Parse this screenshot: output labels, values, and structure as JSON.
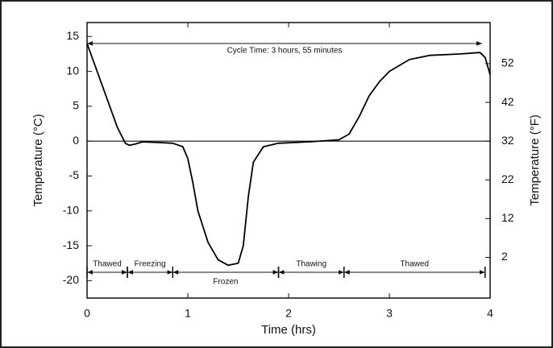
{
  "chart_data": {
    "type": "line",
    "xlabel": "Time (hrs)",
    "ylabel": "Temperature (°C)",
    "y2label": "Temperature (°F)",
    "x": [
      0,
      0.1,
      0.2,
      0.3,
      0.38,
      0.42,
      0.48,
      0.55,
      0.7,
      0.85,
      0.95,
      1.0,
      1.05,
      1.1,
      1.2,
      1.3,
      1.4,
      1.5,
      1.55,
      1.6,
      1.65,
      1.75,
      1.9,
      2.2,
      2.5,
      2.6,
      2.7,
      2.8,
      2.9,
      3.0,
      3.2,
      3.4,
      3.7,
      3.9,
      3.95,
      4.0
    ],
    "series": [
      {
        "color": "#000000",
        "values": [
          14,
          10,
          6,
          2,
          -0.3,
          -0.6,
          -0.4,
          -0.1,
          -0.2,
          -0.3,
          -0.8,
          -2.5,
          -6,
          -10,
          -14.5,
          -17,
          -17.8,
          -17.5,
          -15,
          -8,
          -3,
          -0.8,
          -0.3,
          -0.1,
          0.2,
          1,
          3.5,
          6.5,
          8.5,
          10,
          11.7,
          12.3,
          12.5,
          12.7,
          12,
          9.5
        ]
      }
    ],
    "xlim": [
      0,
      4
    ],
    "xticks": [
      0,
      1,
      2,
      3,
      4
    ],
    "ylim": [
      -22.5,
      17
    ],
    "yticks": [
      -20,
      -15,
      -10,
      -5,
      0,
      5,
      10,
      15
    ],
    "y2lim": [
      -8.5,
      62.6
    ],
    "y2ticks": [
      2,
      12,
      22,
      32,
      42,
      52
    ],
    "reference_line": 0,
    "cycle": {
      "label": "Cycle Time: 3 hours, 55 minutes",
      "start": 0,
      "end": 3.92,
      "y": 14
    },
    "phases": [
      {
        "label": "Thawed",
        "start": 0,
        "end": 0.4,
        "y": -18.8
      },
      {
        "label": "Freezing",
        "start": 0.4,
        "end": 0.85,
        "y": -18.8
      },
      {
        "label": "Frozen",
        "start": 0.85,
        "end": 1.9,
        "y": -18.8,
        "label_position": "below"
      },
      {
        "label": "Thawing",
        "start": 1.9,
        "end": 2.55,
        "y": -18.8
      },
      {
        "label": "Thawed",
        "start": 2.55,
        "end": 3.95,
        "y": -18.8
      }
    ]
  }
}
